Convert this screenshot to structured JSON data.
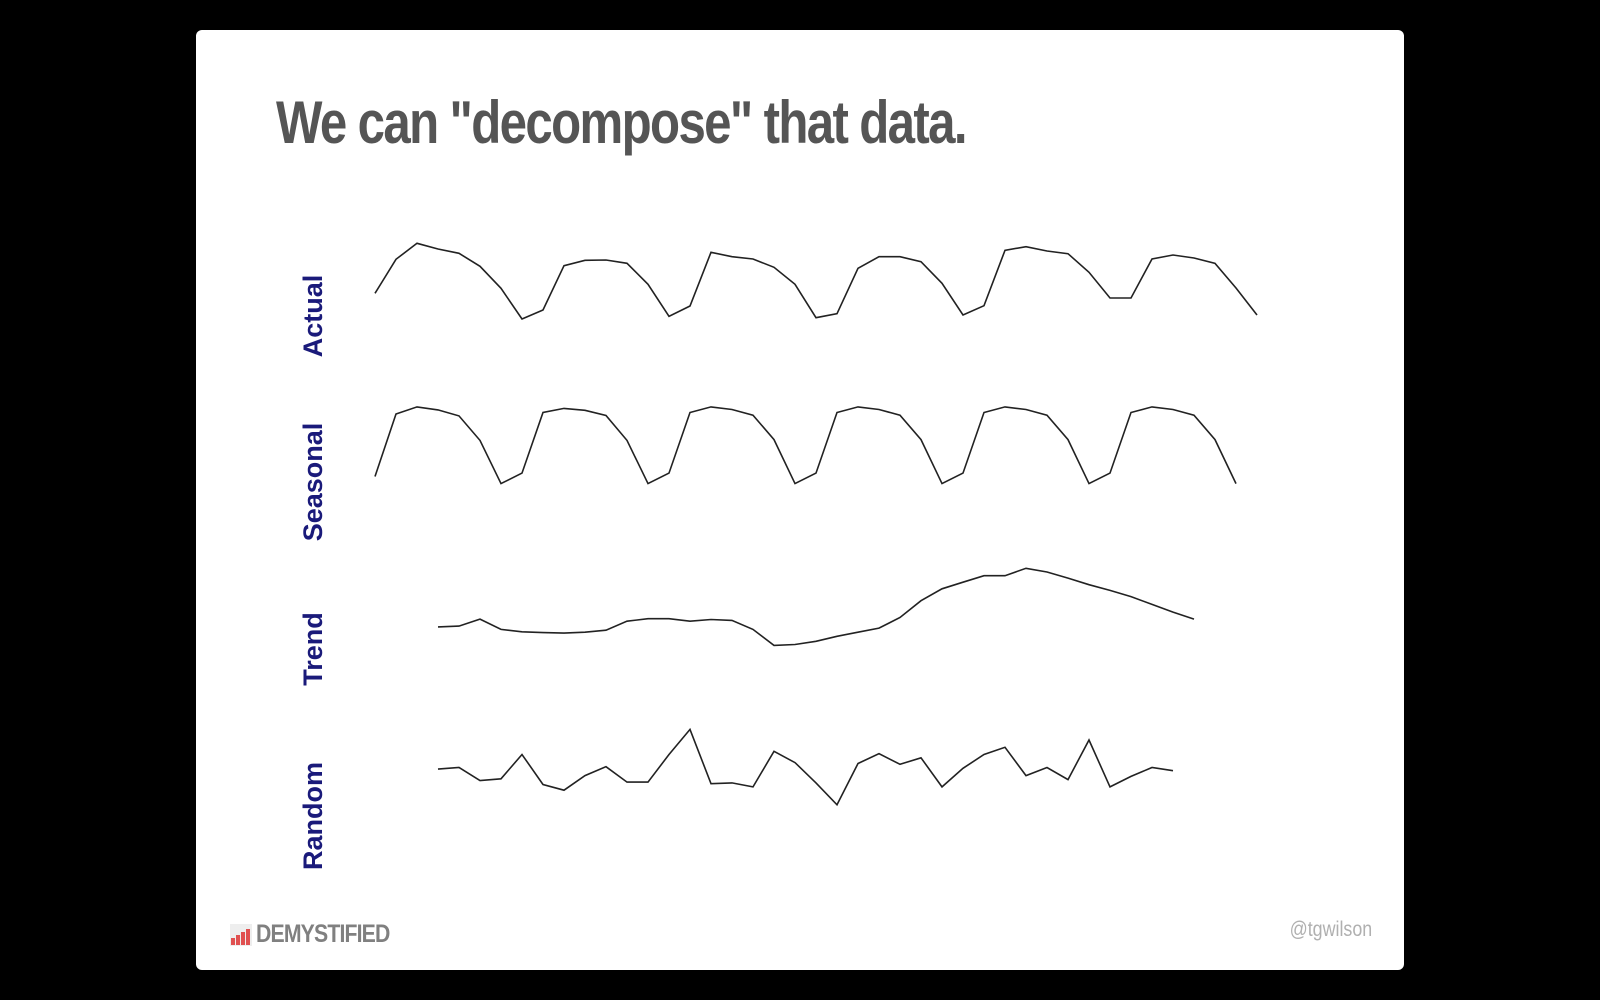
{
  "slide": {
    "title": "We can \"decompose\" that data.",
    "footer_logo": "DEMYSTIFIED",
    "footer_handle": "@tgwilson"
  },
  "colors": {
    "background": "#000000",
    "slide": "#ffffff",
    "title": "#555555",
    "panel_label": "#1a1a7a",
    "line": "#222222",
    "logo_accent": "#e05050"
  },
  "chart_data": {
    "type": "line",
    "grid": false,
    "legend": "none",
    "panels": [
      {
        "name": "Actual",
        "x_start": 0,
        "values": [
          8.6,
          18.8,
          23.6,
          21.9,
          20.6,
          16.7,
          10.1,
          0.9,
          3.6,
          16.9,
          18.5,
          18.6,
          17.6,
          11.3,
          1.7,
          4.8,
          20.9,
          19.6,
          18.9,
          16.4,
          11.3,
          1.3,
          2.5,
          16.1,
          19.6,
          19.6,
          18.1,
          11.6,
          2.1,
          4.9,
          21.5,
          22.6,
          21.3,
          20.5,
          14.9,
          7.2,
          7.2,
          18.9,
          20.1,
          19.2,
          17.6,
          10.2,
          2.1
        ]
      },
      {
        "name": "Seasonal",
        "x_start": 0,
        "values": [
          2.0,
          18.6,
          20.5,
          19.7,
          18.1,
          11.6,
          0.1,
          2.9,
          19.0,
          20.1,
          19.6,
          18.2,
          11.6,
          0.1,
          2.9,
          19.0,
          20.5,
          19.8,
          18.3,
          11.8,
          0.1,
          2.9,
          19.0,
          20.5,
          19.8,
          18.3,
          11.8,
          0.1,
          2.9,
          19.0,
          20.5,
          19.8,
          18.3,
          11.8,
          0.1,
          2.9,
          19.0,
          20.5,
          19.8,
          18.3,
          11.8,
          0.1
        ]
      },
      {
        "name": "Trend",
        "x_start": 3,
        "values": [
          3.9,
          4.1,
          5.8,
          3.3,
          2.7,
          2.5,
          2.4,
          2.6,
          3.1,
          5.3,
          5.9,
          5.9,
          5.3,
          5.7,
          5.5,
          3.3,
          -0.6,
          -0.4,
          0.4,
          1.6,
          2.6,
          3.6,
          6.2,
          10.3,
          13.2,
          14.8,
          16.4,
          16.4,
          18.2,
          17.3,
          15.8,
          14.2,
          12.8,
          11.3,
          9.4,
          7.5,
          5.8
        ]
      },
      {
        "name": "Random",
        "x_start": 3,
        "values": [
          4.8,
          5.0,
          3.4,
          3.6,
          6.6,
          2.9,
          2.2,
          4.0,
          5.1,
          3.2,
          3.2,
          6.6,
          9.7,
          3.0,
          3.1,
          2.6,
          7.0,
          5.6,
          3.1,
          0.4,
          5.5,
          6.7,
          5.4,
          6.2,
          2.6,
          4.9,
          6.6,
          7.5,
          4.0,
          5.0,
          3.5,
          8.4,
          2.6,
          3.9,
          5.0,
          4.6
        ]
      }
    ]
  }
}
